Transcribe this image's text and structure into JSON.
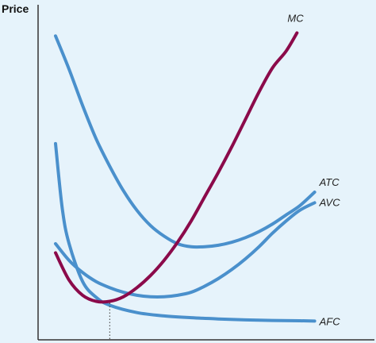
{
  "colors": {
    "background": "#e6f3fb",
    "axis": "#333333",
    "cost_curve": "#4a90cc",
    "marginal_cost": "#8b0a4a"
  },
  "chart_data": {
    "type": "line",
    "ylabel": "Price",
    "xlabel": "",
    "x_tick_labels": false,
    "y_tick_labels": false,
    "xlim": [
      0,
      10
    ],
    "ylim": [
      0,
      10
    ],
    "reference_line": {
      "x": 2.0,
      "style": "dotted",
      "meaning": "output at minimum MC"
    },
    "series": [
      {
        "name": "MC",
        "color": "#8b0a4a",
        "x": [
          0.0,
          0.5,
          1.0,
          1.5,
          2.0,
          2.5,
          3.0,
          3.5,
          4.0,
          4.5,
          5.0,
          5.5,
          6.0,
          6.5,
          7.0,
          7.5,
          8.0,
          8.5,
          8.9
        ],
        "y": [
          2.45,
          1.55,
          1.05,
          0.85,
          0.85,
          1.0,
          1.3,
          1.7,
          2.2,
          2.8,
          3.5,
          4.3,
          5.1,
          5.95,
          6.85,
          7.75,
          8.55,
          9.1,
          9.7
        ]
      },
      {
        "name": "ATC",
        "color": "#4a90cc",
        "x": [
          0.0,
          0.5,
          1.0,
          1.5,
          2.0,
          2.5,
          3.0,
          3.5,
          4.0,
          4.5,
          5.0,
          5.5,
          6.0,
          6.5,
          7.0,
          7.5,
          8.0,
          8.5,
          9.0,
          9.55
        ],
        "y": [
          9.6,
          8.5,
          7.3,
          6.2,
          5.3,
          4.5,
          3.85,
          3.35,
          3.0,
          2.75,
          2.65,
          2.65,
          2.7,
          2.8,
          2.95,
          3.15,
          3.4,
          3.7,
          4.0,
          4.45
        ]
      },
      {
        "name": "AVC",
        "color": "#4a90cc",
        "x": [
          0.0,
          0.5,
          1.0,
          1.5,
          2.0,
          2.5,
          3.0,
          3.5,
          4.0,
          4.5,
          5.0,
          5.5,
          6.0,
          6.5,
          7.0,
          7.5,
          8.0,
          8.5,
          9.0,
          9.55
        ],
        "y": [
          2.75,
          2.2,
          1.8,
          1.5,
          1.3,
          1.15,
          1.05,
          1.0,
          1.0,
          1.05,
          1.15,
          1.35,
          1.6,
          1.9,
          2.25,
          2.65,
          3.1,
          3.5,
          3.85,
          4.1
        ]
      },
      {
        "name": "AFC",
        "color": "#4a90cc",
        "x": [
          0.0,
          0.25,
          0.5,
          1.0,
          1.5,
          2.0,
          3.0,
          4.0,
          5.0,
          6.0,
          7.0,
          8.0,
          9.0,
          9.55
        ],
        "y": [
          6.05,
          3.9,
          2.75,
          1.5,
          0.98,
          0.72,
          0.48,
          0.37,
          0.31,
          0.27,
          0.24,
          0.22,
          0.21,
          0.2
        ]
      }
    ]
  }
}
